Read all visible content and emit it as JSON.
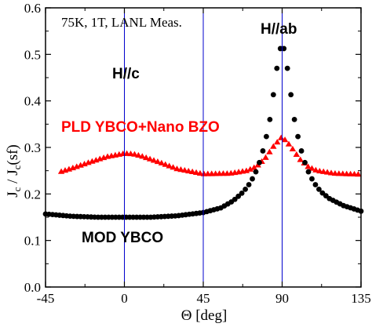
{
  "chart_data": {
    "type": "scatter",
    "title": "",
    "xlabel": "Θ [deg]",
    "ylabel": "J_c / J_c(sf)",
    "ylabel_parts": {
      "J1": "J",
      "c1": "c",
      "slash": " / J",
      "c2": "c",
      "sf": "(sf)"
    },
    "xlim": [
      -45,
      135
    ],
    "ylim": [
      0.0,
      0.6
    ],
    "xticks": [
      "-45",
      "0",
      "45",
      "90",
      "135"
    ],
    "yticks": [
      "0.0",
      "0.1",
      "0.2",
      "0.3",
      "0.4",
      "0.5",
      "0.6"
    ],
    "grid": false,
    "vlines": [
      0,
      45,
      90
    ],
    "series": [
      {
        "name": "PLD YBCO+Nano BZO",
        "color": "#ff0000",
        "marker": "triangle",
        "x": [
          -36,
          -30,
          -20,
          -10,
          0,
          5,
          10,
          20,
          30,
          45,
          60,
          70,
          75,
          80,
          85,
          90,
          95,
          100,
          105,
          110,
          120,
          135
        ],
        "y": [
          0.248,
          0.255,
          0.268,
          0.28,
          0.287,
          0.286,
          0.281,
          0.268,
          0.254,
          0.243,
          0.244,
          0.25,
          0.258,
          0.275,
          0.302,
          0.323,
          0.302,
          0.275,
          0.258,
          0.25,
          0.244,
          0.242
        ]
      },
      {
        "name": "MOD YBCO",
        "color": "#000000",
        "marker": "circle",
        "x": [
          -45,
          -30,
          -15,
          0,
          15,
          30,
          45,
          55,
          62,
          68,
          72,
          76,
          80,
          83,
          86,
          88,
          90,
          92,
          94,
          97,
          100,
          104,
          108,
          112,
          117,
          125,
          135
        ],
        "y": [
          0.157,
          0.152,
          0.15,
          0.15,
          0.15,
          0.153,
          0.16,
          0.17,
          0.185,
          0.205,
          0.225,
          0.255,
          0.305,
          0.36,
          0.44,
          0.5,
          0.525,
          0.5,
          0.44,
          0.36,
          0.305,
          0.255,
          0.225,
          0.205,
          0.19,
          0.175,
          0.163
        ]
      }
    ],
    "annotations": {
      "conditions": "75K, 1T, LANL Meas.",
      "hc": "H//c",
      "hab": "H//ab",
      "pld": "PLD YBCO+Nano BZO",
      "mod": "MOD YBCO"
    }
  }
}
